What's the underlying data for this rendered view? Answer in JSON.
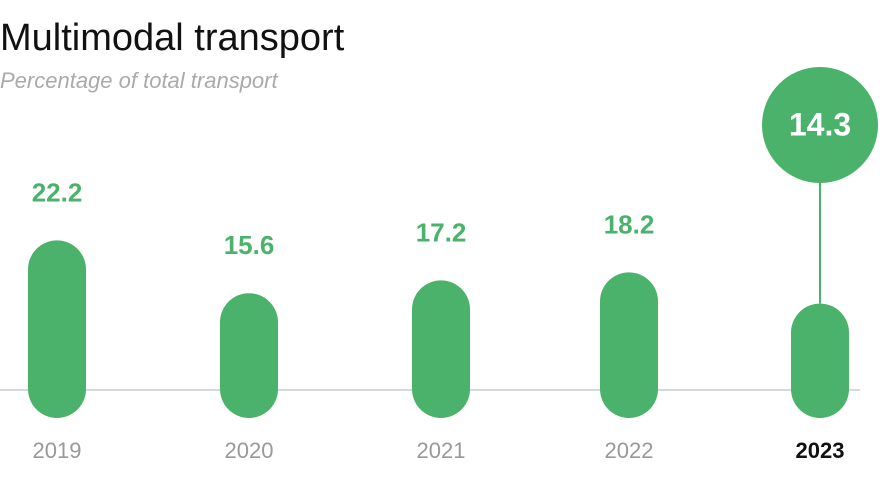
{
  "chart_data": {
    "type": "bar",
    "title": "Multimodal transport",
    "subtitle": "Percentage of total transport",
    "categories": [
      "2019",
      "2020",
      "2021",
      "2022",
      "2023"
    ],
    "values": [
      22.2,
      15.6,
      17.2,
      18.2,
      14.3
    ],
    "color": "#4ab26a"
  }
}
